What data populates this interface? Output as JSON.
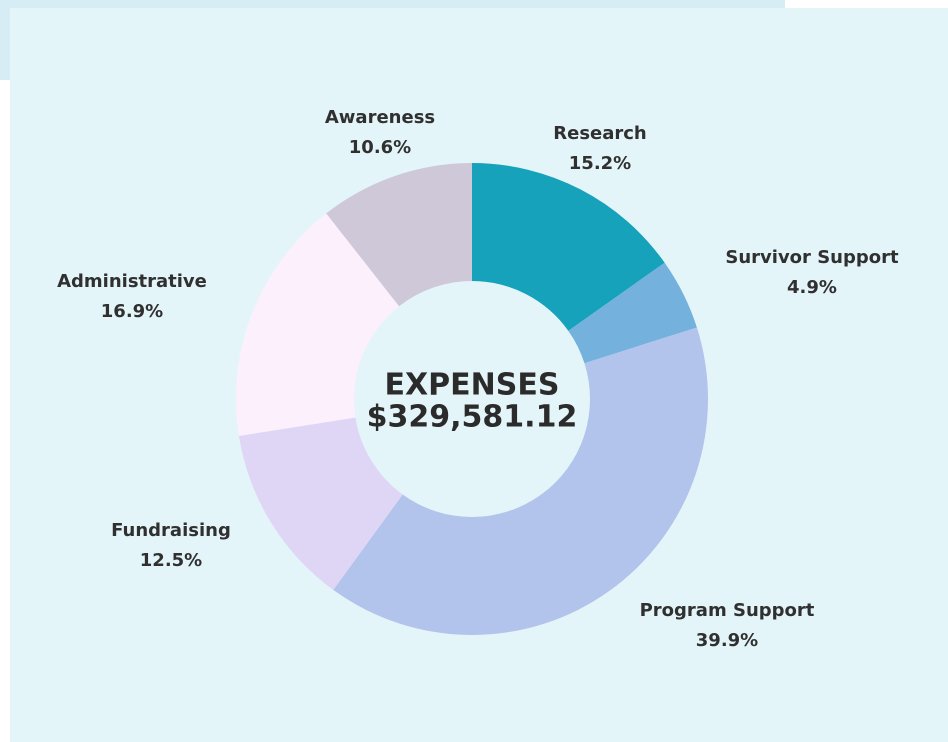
{
  "chart_data": {
    "type": "pie",
    "center_title": "EXPENSES",
    "center_value": "$329,581.12",
    "categories": [
      "Research",
      "Survivor Support",
      "Program Support",
      "Fundraising",
      "Administrative",
      "Awareness"
    ],
    "values": [
      15.2,
      4.9,
      39.9,
      12.5,
      16.9,
      10.6
    ],
    "value_labels": [
      "15.2%",
      "4.9%",
      "39.9%",
      "12.5%",
      "16.9%",
      "10.6%"
    ],
    "colors": [
      "#16a2bb",
      "#74b1dc",
      "#b2c3ec",
      "#dfd6f5",
      "#fdf0fd",
      "#cec8d8"
    ]
  }
}
